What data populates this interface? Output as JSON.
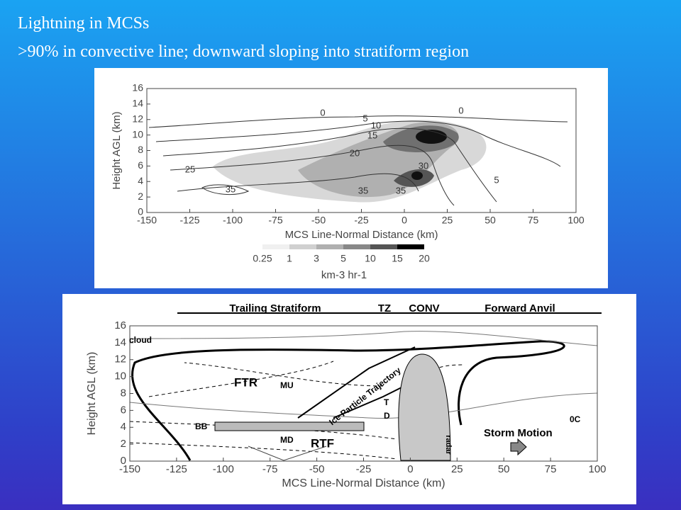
{
  "slide": {
    "title": "Lightning in MCSs",
    "subtitle": ">90% in convective line; downward sloping into stratiform region"
  },
  "figure_top": {
    "ylabel": "Height AGL (km)",
    "xlabel": "MCS Line-Normal Distance (km)",
    "xticks": [
      -150,
      -125,
      -100,
      -75,
      -50,
      -25,
      0,
      25,
      50,
      75,
      100
    ],
    "yticks": [
      0,
      2,
      4,
      6,
      8,
      10,
      12,
      14,
      16
    ],
    "contour_labels": [
      "0",
      "5",
      "10",
      "15",
      "20",
      "25",
      "30",
      "35",
      "35",
      "35",
      "5",
      "0"
    ],
    "colorbar_labels": [
      "0.25",
      "1",
      "3",
      "5",
      "10",
      "15",
      "20"
    ],
    "colorbar_units": "km-3 hr-1"
  },
  "figure_bottom": {
    "ylabel": "Height AGL (km)",
    "xlabel": "MCS Line-Normal Distance (km)",
    "xticks": [
      -150,
      -125,
      -100,
      -75,
      -50,
      -25,
      0,
      25,
      50,
      75,
      100
    ],
    "yticks": [
      0,
      2,
      4,
      6,
      8,
      10,
      12,
      14,
      16
    ],
    "regions": [
      "Trailing Stratiform",
      "TZ",
      "CONV",
      "Forward Anvil"
    ],
    "annotations": [
      "cloud",
      "FTR",
      "MU",
      "BB",
      "MD",
      "RTF",
      "Ice Particle Trajectory",
      "T",
      "D",
      "Storm Motion",
      "0C",
      "radar"
    ]
  }
}
